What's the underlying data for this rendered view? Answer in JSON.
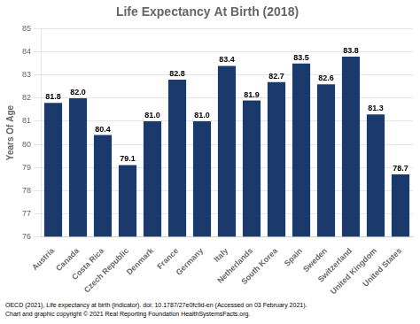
{
  "chart_data": {
    "type": "bar",
    "title": "Life Expectancy At Birth (2018)",
    "ylabel": "Years Of Age",
    "categories": [
      "Austria",
      "Canada",
      "Costa Rica",
      "Czech Republic",
      "Denmark",
      "France",
      "Germany",
      "Italy",
      "Netherlands",
      "South Korea",
      "Spain",
      "Sweden",
      "Switzerland",
      "United Kingdom",
      "United States"
    ],
    "values": [
      81.8,
      82.0,
      80.4,
      79.1,
      81.0,
      82.8,
      81.0,
      83.4,
      81.9,
      82.7,
      83.5,
      82.6,
      83.8,
      81.3,
      78.7
    ],
    "value_labels": [
      "81.8",
      "82.0",
      "80.4",
      "79.1",
      "81.0",
      "82.8",
      "81.0",
      "83.4",
      "81.9",
      "82.7",
      "83.5",
      "82.6",
      "83.8",
      "81.3",
      "78.7"
    ],
    "color": "#1a3a6b",
    "ylim": [
      76,
      85
    ],
    "yticks": [
      76,
      77,
      78,
      79,
      80,
      81,
      82,
      83,
      84,
      85
    ],
    "grid": true,
    "data_labels": true,
    "annotations": [
      "OECD (2021), Life expectancy at birth (indicator). doi: 10.1787/27e0fc9d-en (Accessed on 03 February 2021).",
      "Chart and graphic copyright © 2021 Real Reporting Foundation HealthSystemsFacts.org."
    ]
  }
}
